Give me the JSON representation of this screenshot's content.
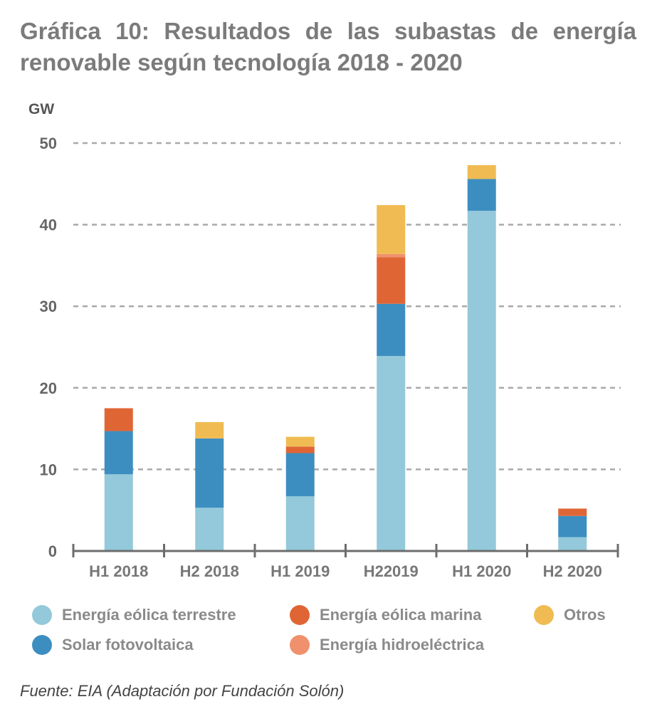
{
  "chart_data": {
    "type": "bar",
    "stacked": true,
    "title": "Gráfica 10: Resultados de las subastas de energía renovable según tecnología 2018 - 2020",
    "ylabel": "GW",
    "xlabel": "",
    "ylim": [
      0,
      50
    ],
    "yticks": [
      0,
      10,
      20,
      30,
      40,
      50
    ],
    "grid": true,
    "categories": [
      "H1 2018",
      "H2 2018",
      "H1 2019",
      "H22019",
      "H1 2020",
      "H2 2020"
    ],
    "series": [
      {
        "name": "Energía eólica terrestre",
        "color": "#93c9da",
        "values": [
          9.4,
          5.3,
          6.7,
          23.9,
          41.7,
          1.7
        ]
      },
      {
        "name": "Solar fotovoltaica",
        "color": "#3d8ec0",
        "values": [
          5.3,
          8.5,
          5.3,
          6.4,
          3.9,
          2.6
        ]
      },
      {
        "name": "Energía eólica marina",
        "color": "#e06535",
        "values": [
          2.8,
          0,
          0.8,
          5.7,
          0,
          0.9
        ]
      },
      {
        "name": "Energía hidroeléctrica",
        "color": "#f0916e",
        "values": [
          0,
          0,
          0,
          0.4,
          0,
          0
        ]
      },
      {
        "name": "Otros",
        "color": "#f0bb52",
        "values": [
          0,
          2.0,
          1.2,
          6.0,
          1.7,
          0
        ]
      }
    ],
    "legend_position": "bottom",
    "legend_order": [
      "Energía eólica terrestre",
      "Energía eólica marina",
      "Otros",
      "Solar fotovoltaica",
      "Energía hidroeléctrica"
    ]
  },
  "source": "Fuente: EIA (Adaptación por Fundación Solón)"
}
